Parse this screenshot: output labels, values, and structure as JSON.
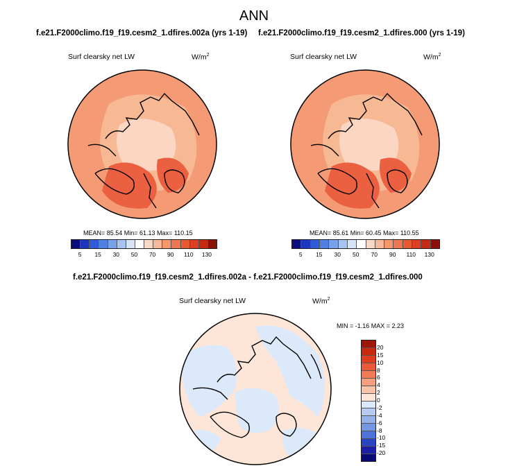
{
  "page": {
    "title": "ANN"
  },
  "panels": [
    {
      "case": "f.e21.F2000climo.f19_f19.cesm2_1.dfires.002a (yrs 1-19)",
      "variable": "Surf clearsky net LW",
      "units": "W/m",
      "units_sup": "2",
      "stats": "MEAN= 85.54  Min= 61.13  Max= 110.15"
    },
    {
      "case": "f.e21.F2000climo.f19_f19.cesm2_1.dfires.000 (yrs 1-19)",
      "variable": "Surf clearsky net LW",
      "units": "W/m",
      "units_sup": "2",
      "stats": "MEAN= 85.61  Min= 60.45  Max= 110.55"
    }
  ],
  "colorbar_abs": {
    "labels": [
      "5",
      "15",
      "30",
      "50",
      "70",
      "90",
      "110",
      "130"
    ],
    "colors": [
      "#0b0b7a",
      "#1f36c0",
      "#2f5bd8",
      "#4f7fe0",
      "#7aa2ea",
      "#a8c4f2",
      "#d6e3f8",
      "#ffffff",
      "#fbd8c6",
      "#f8b79b",
      "#f5966f",
      "#f07650",
      "#e85a36",
      "#dc4024",
      "#c42a14",
      "#8a1108"
    ]
  },
  "diff": {
    "title": "f.e21.F2000climo.f19_f19.cesm2_1.dfires.002a - f.e21.F2000climo.f19_f19.cesm2_1.dfires.000",
    "variable": "Surf clearsky net LW",
    "units": "W/m",
    "units_sup": "2",
    "stats": "MIN =  -1.16 MAX =   2.23"
  },
  "colorbar_diff": {
    "labels": [
      "20",
      "15",
      "10",
      "8",
      "6",
      "4",
      "2",
      "0",
      "-2",
      "-4",
      "-6",
      "-8",
      "-10",
      "-15",
      "-20"
    ],
    "colors": [
      "#9e1509",
      "#c8290f",
      "#dd3d1c",
      "#ea5a36",
      "#f27b55",
      "#f59f7f",
      "#f8c3aa",
      "#fde6d8",
      "#dce9fa",
      "#b7cbf2",
      "#96b0ea",
      "#7596e2",
      "#4f73d8",
      "#2a45c2",
      "#1a1fa6",
      "#0a0a74"
    ]
  },
  "map_colors": {
    "ocean_abs": "#f49a74",
    "inner_abs": "#f7b894",
    "core_abs": "#fbd6c2",
    "hot_abs": "#ea6040",
    "diff_bg": "#fde6d8",
    "diff_neg": "#dce9fa"
  }
}
